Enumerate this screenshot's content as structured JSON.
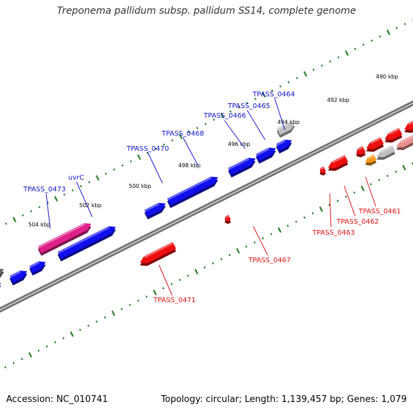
{
  "title": "Treponema pallidum subsp. pallidum SS14, complete genome",
  "footer": {
    "accession": "Accession: NC_010741",
    "summary": "Topology: circular; Length: 1,139,457 bp; Genes: 1,079"
  },
  "colors": {
    "forward_gene": "#1010ee",
    "reverse_gene": "#ee1010",
    "uvrC": "#e0208a",
    "cyan_gene": "#22c4c4",
    "dark_gray_gene": "#6a6a6a",
    "light_gray_gene": "#c0c0c0",
    "pink_gene": "#e89090",
    "orange_gene": "#f59a1a",
    "tick": "#1a7a1a",
    "backbone": "#8a8a8a"
  },
  "tick_labels": [
    "490 kbp",
    "492 kbp",
    "494 kbp",
    "496 kbp",
    "498 kbp",
    "500 kbp",
    "502 kbp",
    "504 kbp"
  ],
  "gene_labels": [
    {
      "text": "TPASS_0464",
      "strand": "forward"
    },
    {
      "text": "TPASS_0465",
      "strand": "forward"
    },
    {
      "text": "TPASS_0466",
      "strand": "forward"
    },
    {
      "text": "TPASS_0468",
      "strand": "forward"
    },
    {
      "text": "TPASS_0470",
      "strand": "forward"
    },
    {
      "text": "uvrC",
      "strand": "forward"
    },
    {
      "text": "TPASS_0473",
      "strand": "forward"
    },
    {
      "text": "TPASS_0461",
      "strand": "reverse"
    },
    {
      "text": "TPASS_0462",
      "strand": "reverse"
    },
    {
      "text": "TPASS_0463",
      "strand": "reverse"
    },
    {
      "text": "TPASS_0467",
      "strand": "reverse"
    },
    {
      "text": "TPASS_0471",
      "strand": "reverse"
    }
  ]
}
